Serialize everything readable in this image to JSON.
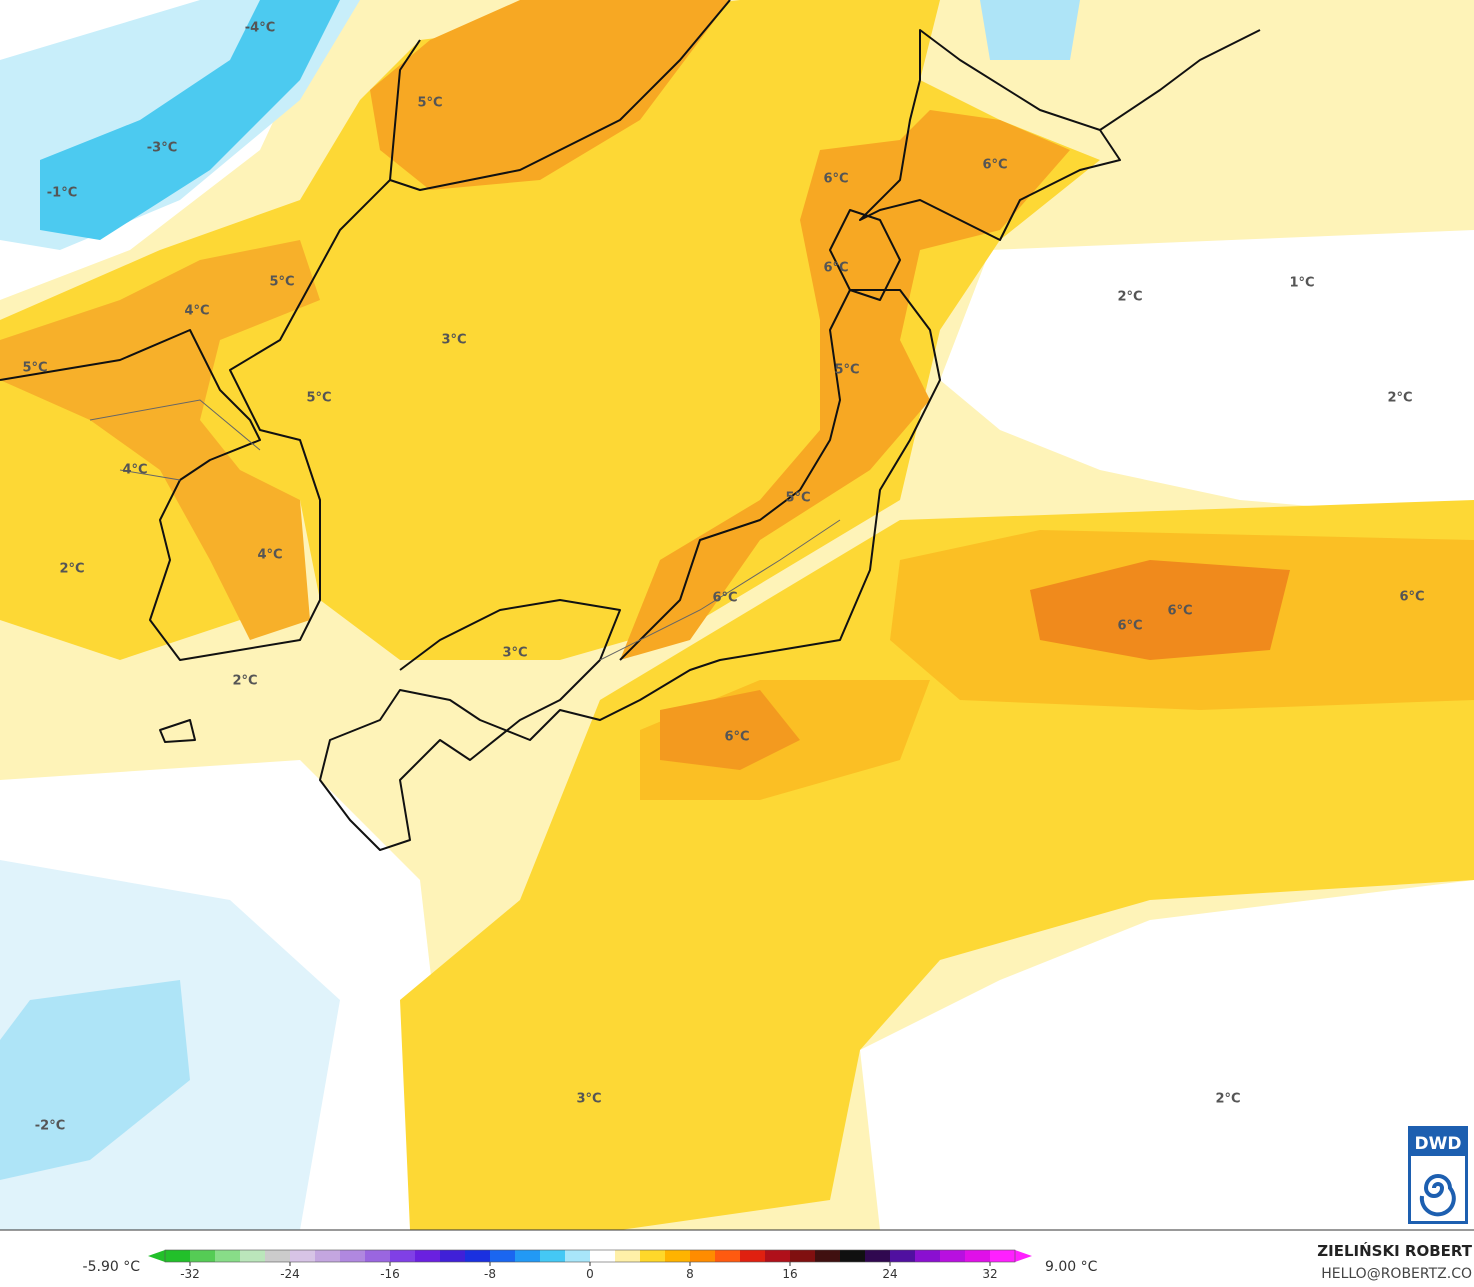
{
  "map": {
    "labels": [
      "-4°C",
      "5°C",
      "-3°C",
      "-1°C",
      "6°C",
      "6°C",
      "6°C",
      "5°C",
      "2°C",
      "1°C",
      "4°C",
      "3°C",
      "5°C",
      "5°C",
      "5°C",
      "2°C",
      "4°C",
      "5°C",
      "4°C",
      "2°C",
      "6°C",
      "6°C",
      "6°C",
      "6°C",
      "3°C",
      "2°C",
      "6°C",
      "3°C",
      "2°C",
      "-2°C"
    ]
  },
  "legend": {
    "min_label": "-5.90 °C",
    "max_label": "9.00 °C",
    "lim": [
      -34,
      34
    ],
    "ticks": [
      -32,
      -24,
      -16,
      -8,
      0,
      8,
      16,
      24,
      32
    ],
    "colors": [
      "#22c02a",
      "#55cc55",
      "#88dd88",
      "#bbe6bb",
      "#cccccc",
      "#d7c4e6",
      "#c4a6e0",
      "#b088e0",
      "#9a66e0",
      "#8040e6",
      "#6a20e0",
      "#4020d8",
      "#1a30e0",
      "#1a66f0",
      "#2299f5",
      "#44c8f5",
      "#a8e6fa",
      "#ffffff",
      "#fff0a8",
      "#ffd82a",
      "#ffb300",
      "#ff8c00",
      "#ff5a10",
      "#e02010",
      "#b0101a",
      "#801010",
      "#401010",
      "#101010",
      "#300850",
      "#5010a0",
      "#8a10d0",
      "#b810e0",
      "#e010e8",
      "#ff20ff"
    ]
  },
  "credit": {
    "name": "ZIELIŃSKI ROBERT",
    "email": "HELLO@ROBERTZ.CO"
  },
  "logo": "DWD"
}
